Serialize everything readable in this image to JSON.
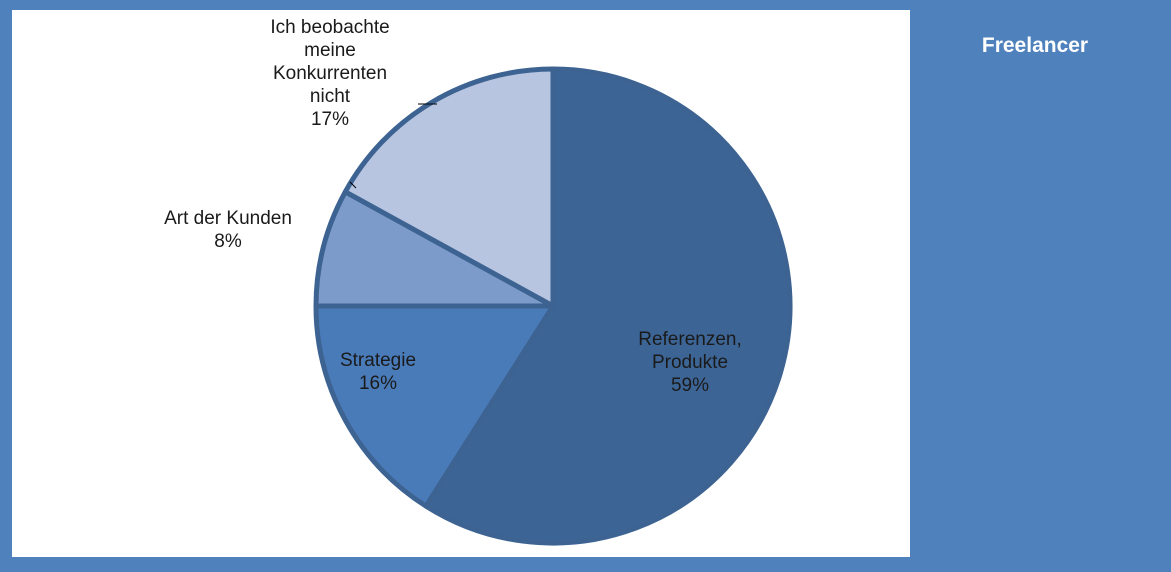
{
  "chart_data": {
    "type": "pie",
    "categories": [
      "Referenzen,\nProdukte",
      "Strategie",
      "Art der Kunden",
      "Ich beobachte\nmeine\nKonkurrenten\nnicht"
    ],
    "values": [
      59,
      16,
      8,
      17
    ],
    "value_labels": [
      "59%",
      "16%",
      "8%",
      "17%"
    ],
    "colors": [
      "#3c6596",
      "#4a7bb9",
      "#7c9bca",
      "#b8c5e0"
    ]
  },
  "side_panel": {
    "title": "Freelancer"
  }
}
